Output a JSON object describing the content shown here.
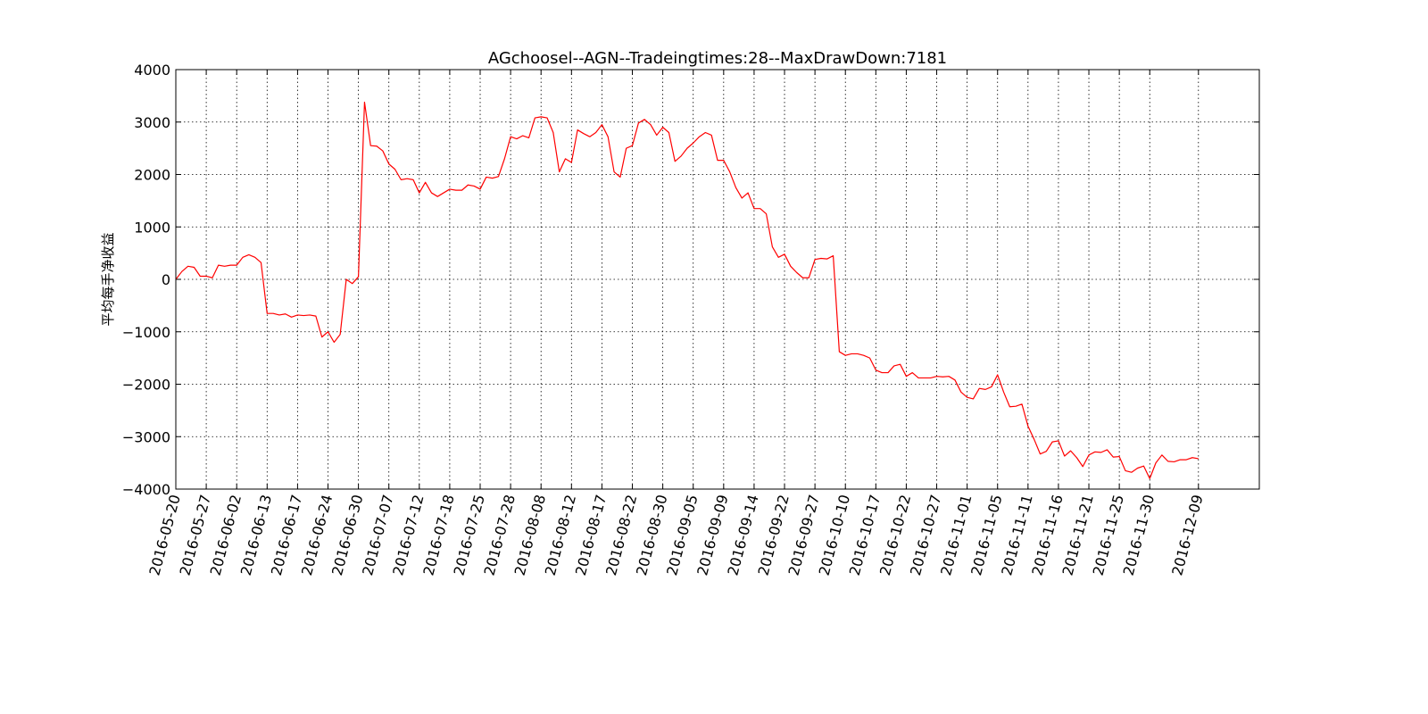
{
  "chart_data": {
    "type": "line",
    "title": "AGchoosel--AGN--Tradeingtimes:28--MaxDrawDown:7181",
    "ylabel": "平均每手净收益",
    "color": "#ff0000",
    "grid": true,
    "values": [
      0,
      150,
      250,
      230,
      60,
      60,
      30,
      270,
      250,
      270,
      270,
      420,
      470,
      420,
      320,
      -650,
      -650,
      -680,
      -660,
      -720,
      -680,
      -690,
      -680,
      -700,
      -1100,
      -1000,
      -1200,
      -1050,
      0,
      -80,
      50,
      3380,
      2550,
      2540,
      2450,
      2200,
      2100,
      1900,
      1920,
      1900,
      1650,
      1850,
      1650,
      1580,
      1650,
      1720,
      1700,
      1700,
      1800,
      1780,
      1720,
      1950,
      1930,
      1960,
      2300,
      2720,
      2680,
      2740,
      2700,
      3080,
      3100,
      3080,
      2800,
      2050,
      2300,
      2230,
      2850,
      2780,
      2720,
      2800,
      2950,
      2720,
      2050,
      1950,
      2500,
      2550,
      2980,
      3050,
      2950,
      2750,
      2900,
      2800,
      2250,
      2350,
      2500,
      2600,
      2720,
      2800,
      2750,
      2270,
      2270,
      2050,
      1750,
      1550,
      1650,
      1350,
      1350,
      1250,
      620,
      420,
      480,
      250,
      130,
      30,
      30,
      380,
      400,
      390,
      450,
      -1380,
      -1450,
      -1420,
      -1420,
      -1450,
      -1500,
      -1730,
      -1780,
      -1780,
      -1650,
      -1620,
      -1850,
      -1780,
      -1880,
      -1880,
      -1880,
      -1850,
      -1860,
      -1850,
      -1920,
      -2150,
      -2250,
      -2280,
      -2080,
      -2100,
      -2050,
      -1820,
      -2150,
      -2430,
      -2420,
      -2380,
      -2800,
      -3050,
      -3330,
      -3280,
      -3100,
      -3080,
      -3370,
      -3270,
      -3400,
      -3570,
      -3350,
      -3290,
      -3300,
      -3250,
      -3390,
      -3380,
      -3650,
      -3680,
      -3600,
      -3560,
      -3800,
      -3500,
      -3350,
      -3470,
      -3480,
      -3440,
      -3440,
      -3400,
      -3420
    ],
    "xlim": [
      0,
      178
    ],
    "xticks": [
      {
        "value": 0,
        "label": "2016-05-20"
      },
      {
        "value": 5,
        "label": "2016-05-27"
      },
      {
        "value": 10,
        "label": "2016-06-02"
      },
      {
        "value": 15,
        "label": "2016-06-13"
      },
      {
        "value": 20,
        "label": "2016-06-17"
      },
      {
        "value": 25,
        "label": "2016-06-24"
      },
      {
        "value": 30,
        "label": "2016-06-30"
      },
      {
        "value": 35,
        "label": "2016-07-07"
      },
      {
        "value": 40,
        "label": "2016-07-12"
      },
      {
        "value": 45,
        "label": "2016-07-18"
      },
      {
        "value": 50,
        "label": "2016-07-25"
      },
      {
        "value": 55,
        "label": "2016-07-28"
      },
      {
        "value": 60,
        "label": "2016-08-08"
      },
      {
        "value": 65,
        "label": "2016-08-12"
      },
      {
        "value": 70,
        "label": "2016-08-17"
      },
      {
        "value": 75,
        "label": "2016-08-22"
      },
      {
        "value": 80,
        "label": "2016-08-30"
      },
      {
        "value": 85,
        "label": "2016-09-05"
      },
      {
        "value": 90,
        "label": "2016-09-09"
      },
      {
        "value": 95,
        "label": "2016-09-14"
      },
      {
        "value": 100,
        "label": "2016-09-22"
      },
      {
        "value": 105,
        "label": "2016-09-27"
      },
      {
        "value": 110,
        "label": "2016-10-10"
      },
      {
        "value": 115,
        "label": "2016-10-17"
      },
      {
        "value": 120,
        "label": "2016-10-22"
      },
      {
        "value": 125,
        "label": "2016-10-27"
      },
      {
        "value": 130,
        "label": "2016-11-01"
      },
      {
        "value": 135,
        "label": "2016-11-05"
      },
      {
        "value": 140,
        "label": "2016-11-11"
      },
      {
        "value": 145,
        "label": "2016-11-16"
      },
      {
        "value": 150,
        "label": "2016-11-21"
      },
      {
        "value": 155,
        "label": "2016-11-25"
      },
      {
        "value": 160,
        "label": "2016-11-30"
      },
      {
        "value": 168,
        "label": "2016-12-09"
      }
    ],
    "ylim": [
      -4000,
      4000
    ],
    "yticks": [
      {
        "value": -4000,
        "label": "−4000"
      },
      {
        "value": -3000,
        "label": "−3000"
      },
      {
        "value": -2000,
        "label": "−2000"
      },
      {
        "value": -1000,
        "label": "−1000"
      },
      0,
      1000,
      2000,
      3000,
      4000
    ]
  }
}
